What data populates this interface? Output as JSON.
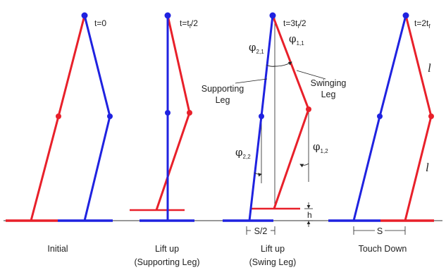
{
  "colors": {
    "red_leg": "#e8202a",
    "blue_leg": "#1f22e0",
    "ground": "#333333",
    "annotation": "#222222"
  },
  "frames": [
    {
      "time_main": "t=0",
      "time_sub": "",
      "time_tail": "",
      "caption_line1": "Initial",
      "caption_line2": ""
    },
    {
      "time_main": "t=t",
      "time_sub": "f",
      "time_tail": "/2",
      "caption_line1": "Lift up",
      "caption_line2": "(Supporting Leg)"
    },
    {
      "time_main": "t=3t",
      "time_sub": "f",
      "time_tail": "/2",
      "caption_line1": "Lift up",
      "caption_line2": "(Swing Leg)"
    },
    {
      "time_main": "t=2t",
      "time_sub": "f",
      "time_tail": "",
      "caption_line1": "Touch Down",
      "caption_line2": ""
    }
  ],
  "angles": {
    "phi_2_1": {
      "symbol": "φ",
      "sub": "2,1"
    },
    "phi_1_1": {
      "symbol": "φ",
      "sub": "1,1"
    },
    "phi_2_2": {
      "symbol": "φ",
      "sub": "2,2"
    },
    "phi_1_2": {
      "symbol": "φ",
      "sub": "1,2"
    }
  },
  "labels": {
    "supporting_leg_line1": "Supporting",
    "supporting_leg_line2": "Leg",
    "swinging_leg_line1": "Swinging",
    "swinging_leg_line2": "Leg",
    "foot_height": "h",
    "half_step": "S/2",
    "step": "S",
    "segment_length": "l"
  }
}
